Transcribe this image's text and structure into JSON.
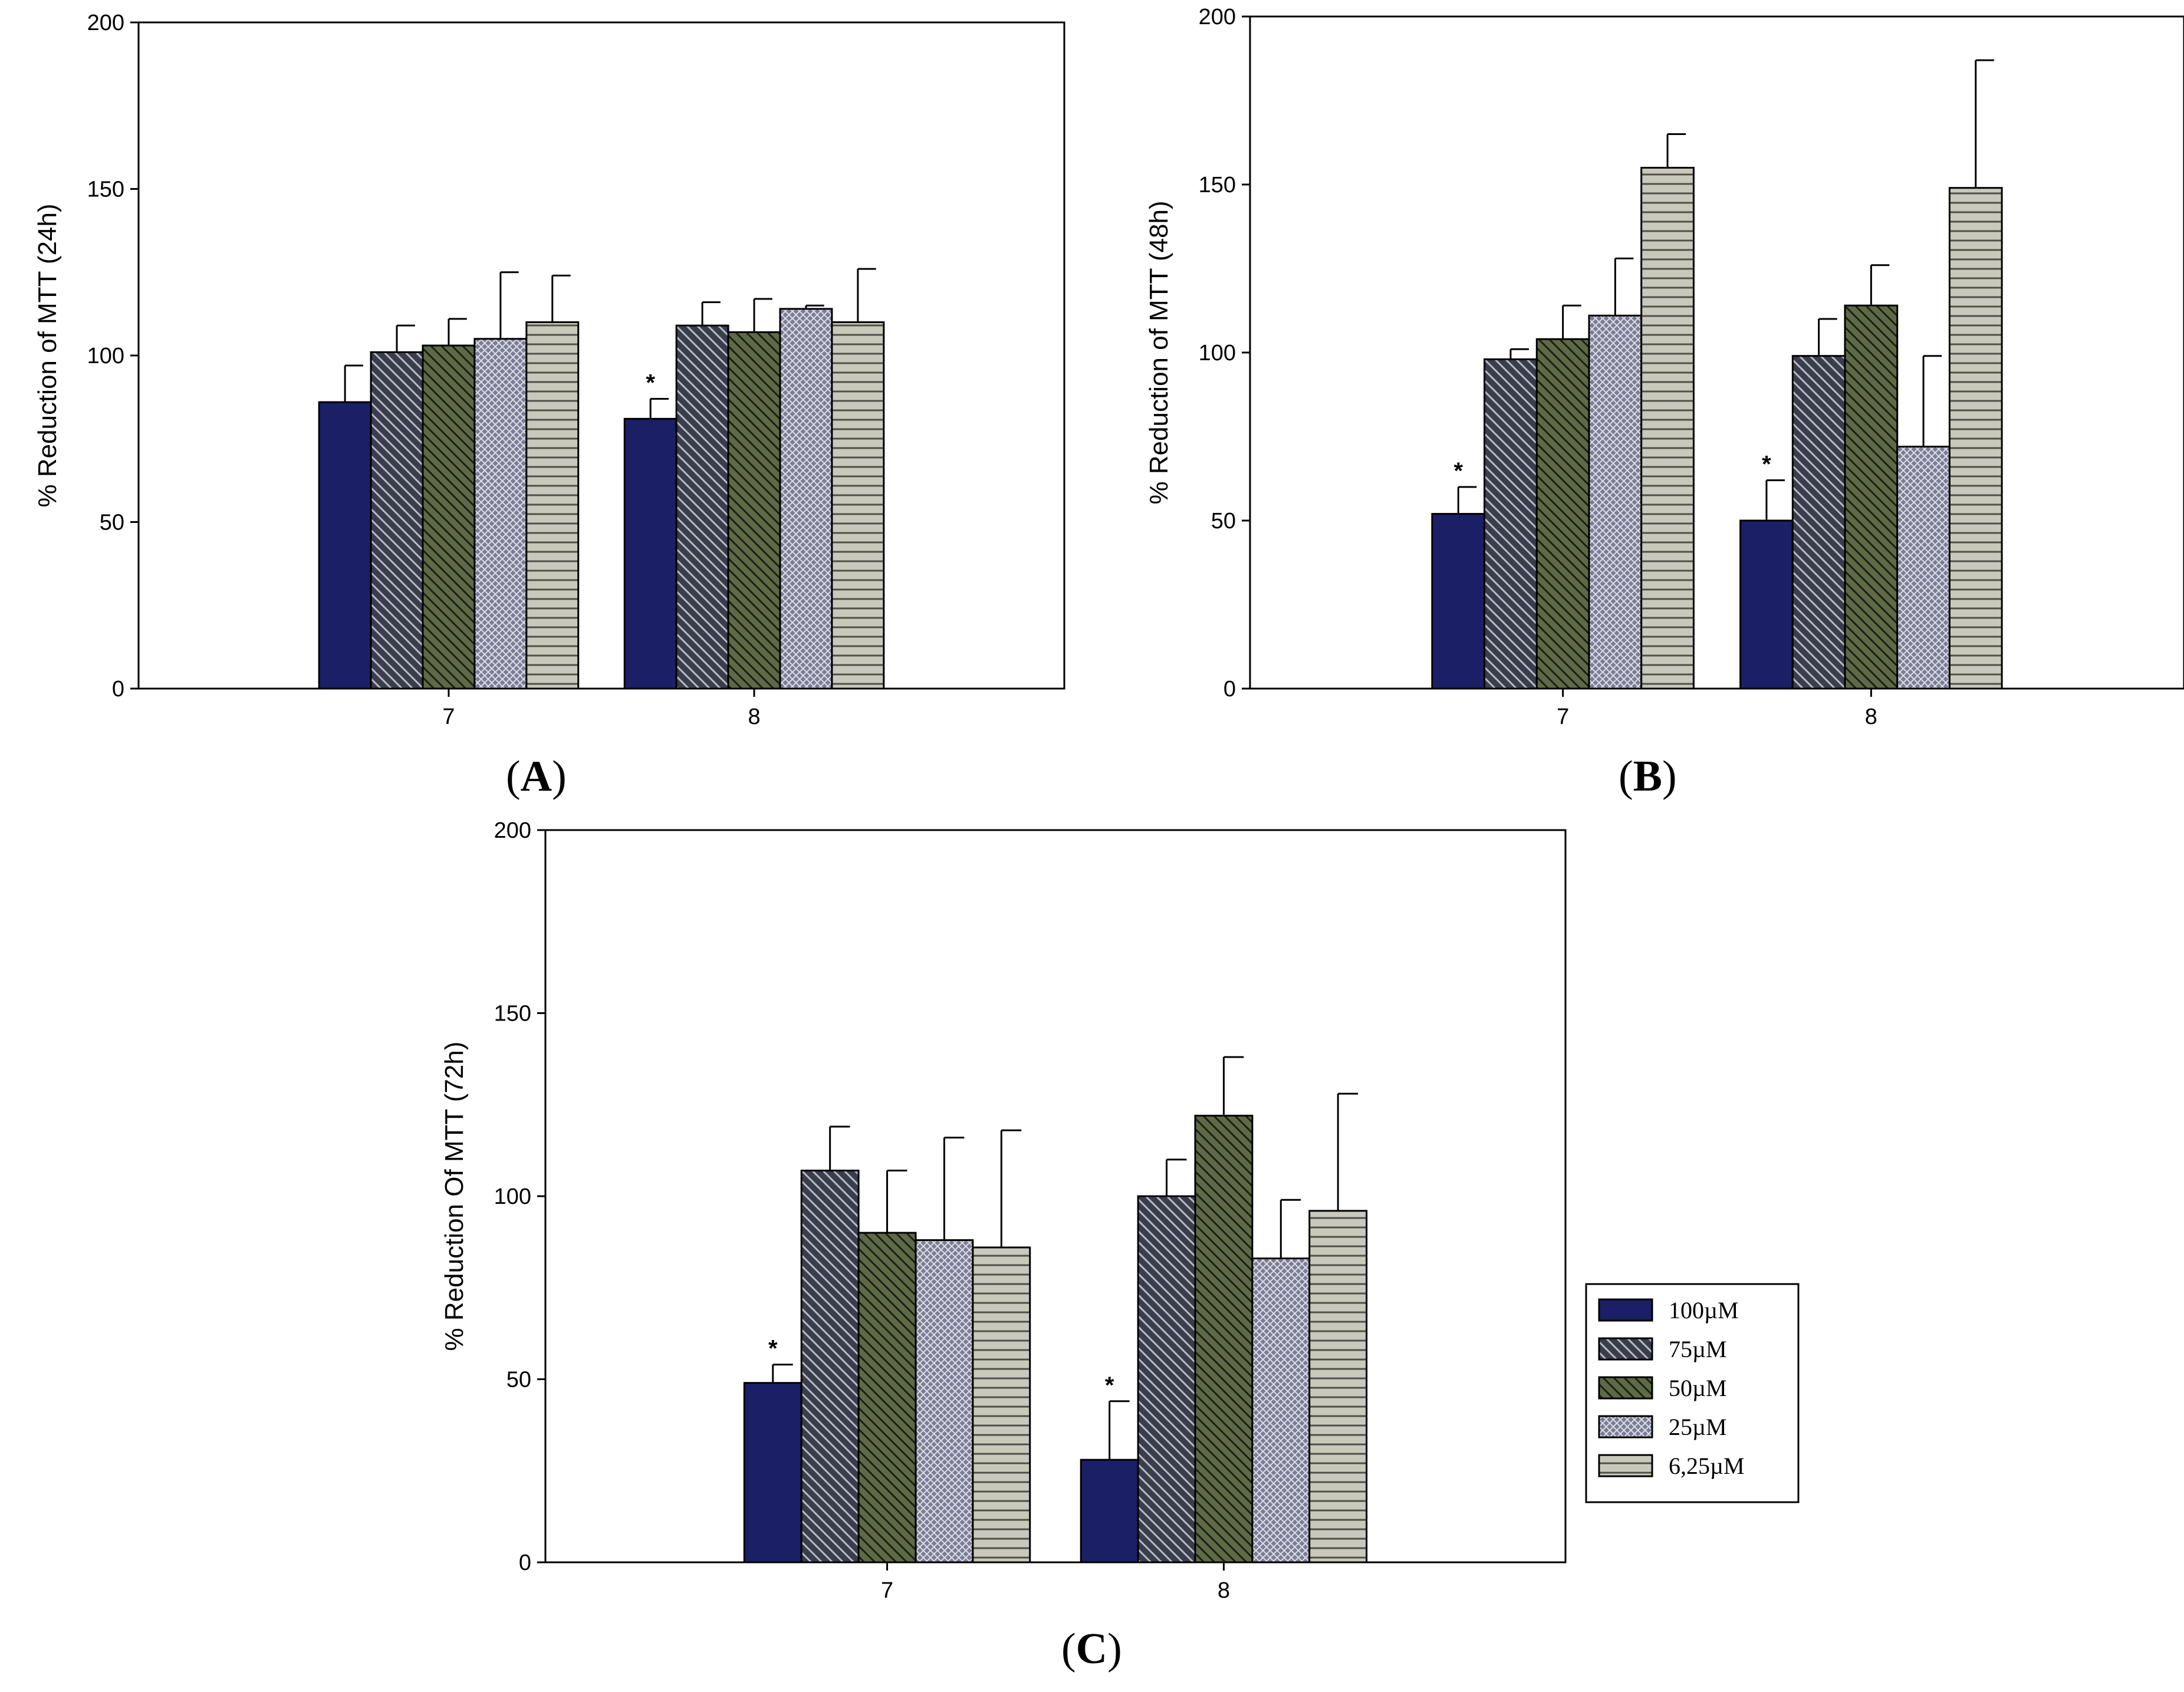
{
  "figure": {
    "panel_labels": [
      "A",
      "B",
      "C"
    ]
  },
  "legend": {
    "entries": [
      "100µM",
      "75µM",
      "50µM",
      "25µM",
      "6,25µM"
    ]
  },
  "series_styles": [
    {
      "name": "100µM",
      "fill": "#1b1f66",
      "pattern": "solid"
    },
    {
      "name": "75µM",
      "fill": "#3a3d4c",
      "pattern": "diag-right",
      "line": "#b8bac4"
    },
    {
      "name": "50µM",
      "fill": "#5e6a45",
      "pattern": "diag-right",
      "line": "#1c1f14"
    },
    {
      "name": "25µM",
      "fill": "#7b7d96",
      "pattern": "crosshatch",
      "line": "#dddde6"
    },
    {
      "name": "6,25µM",
      "fill": "#c9c9bb",
      "pattern": "horizontal",
      "line": "#505048"
    }
  ],
  "chart_data": [
    {
      "id": "A",
      "type": "bar",
      "title": "",
      "xlabel": "",
      "ylabel": "% Reduction of MTT (24h)",
      "ylim": [
        0,
        200
      ],
      "yticks": [
        0,
        50,
        100,
        150,
        200
      ],
      "categories": [
        "7",
        "8"
      ],
      "series": [
        {
          "name": "100µM",
          "values": [
            86,
            81
          ],
          "errors": [
            11,
            6
          ],
          "significant": [
            false,
            true
          ]
        },
        {
          "name": "75µM",
          "values": [
            101,
            109
          ],
          "errors": [
            8,
            7
          ],
          "significant": [
            false,
            false
          ]
        },
        {
          "name": "50µM",
          "values": [
            103,
            107
          ],
          "errors": [
            8,
            10
          ],
          "significant": [
            false,
            false
          ]
        },
        {
          "name": "25µM",
          "values": [
            105,
            114
          ],
          "errors": [
            20,
            1
          ],
          "significant": [
            false,
            false
          ]
        },
        {
          "name": "6,25µM",
          "values": [
            110,
            110
          ],
          "errors": [
            14,
            16
          ],
          "significant": [
            false,
            false
          ]
        }
      ],
      "significance_marker": "*"
    },
    {
      "id": "B",
      "type": "bar",
      "title": "",
      "xlabel": "",
      "ylabel": "% Reduction of  MTT (48h)",
      "ylim": [
        0,
        200
      ],
      "yticks": [
        0,
        50,
        100,
        150,
        200
      ],
      "categories": [
        "7",
        "8"
      ],
      "series": [
        {
          "name": "100µM",
          "values": [
            52,
            50
          ],
          "errors": [
            8,
            12
          ],
          "significant": [
            true,
            true
          ]
        },
        {
          "name": "75µM",
          "values": [
            98,
            99
          ],
          "errors": [
            3,
            11
          ],
          "significant": [
            false,
            false
          ]
        },
        {
          "name": "50µM",
          "values": [
            104,
            114
          ],
          "errors": [
            10,
            12
          ],
          "significant": [
            false,
            false
          ]
        },
        {
          "name": "25µM",
          "values": [
            111,
            72
          ],
          "errors": [
            17,
            27
          ],
          "significant": [
            false,
            false
          ]
        },
        {
          "name": "6,25µM",
          "values": [
            155,
            149
          ],
          "errors": [
            10,
            38
          ],
          "significant": [
            false,
            false
          ]
        }
      ],
      "significance_marker": "*"
    },
    {
      "id": "C",
      "type": "bar",
      "title": "",
      "xlabel": "",
      "ylabel": "% Reduction Of MTT (72h)",
      "ylim": [
        0,
        200
      ],
      "yticks": [
        0,
        50,
        100,
        150,
        200
      ],
      "categories": [
        "7",
        "8"
      ],
      "series": [
        {
          "name": "100µM",
          "values": [
            49,
            28
          ],
          "errors": [
            5,
            16
          ],
          "significant": [
            true,
            true
          ]
        },
        {
          "name": "75µM",
          "values": [
            107,
            100
          ],
          "errors": [
            12,
            10
          ],
          "significant": [
            false,
            false
          ]
        },
        {
          "name": "50µM",
          "values": [
            90,
            122
          ],
          "errors": [
            17,
            16
          ],
          "significant": [
            false,
            false
          ]
        },
        {
          "name": "25µM",
          "values": [
            88,
            83
          ],
          "errors": [
            28,
            16
          ],
          "significant": [
            false,
            false
          ]
        },
        {
          "name": "6,25µM",
          "values": [
            86,
            96
          ],
          "errors": [
            32,
            32
          ],
          "significant": [
            false,
            false
          ]
        }
      ],
      "significance_marker": "*",
      "legend_position": "right"
    }
  ]
}
